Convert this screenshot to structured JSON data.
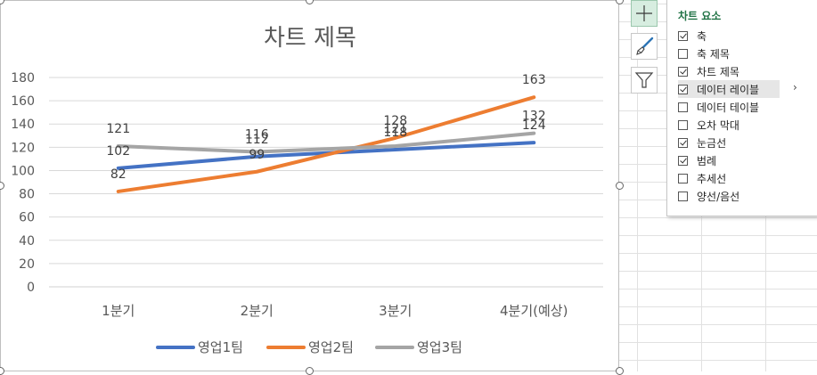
{
  "chart_data": {
    "type": "line",
    "title": "차트 제목",
    "categories": [
      "1분기",
      "2분기",
      "3분기",
      "4분기(예상)"
    ],
    "series": [
      {
        "name": "영업1팀",
        "values": [
          102,
          112,
          118,
          124
        ],
        "color": "#4472c4"
      },
      {
        "name": "영업2팀",
        "values": [
          82,
          99,
          128,
          163
        ],
        "color": "#ed7d31"
      },
      {
        "name": "영업3팀",
        "values": [
          121,
          116,
          121,
          132
        ],
        "color": "#a5a5a5"
      }
    ],
    "ylim": [
      0,
      180
    ],
    "yticks": [
      0,
      20,
      40,
      60,
      80,
      100,
      120,
      140,
      160,
      180
    ],
    "grid": true,
    "legend": "bottom",
    "data_labels": true
  },
  "panel": {
    "title": "차트 요소",
    "items": [
      {
        "label": "축",
        "checked": true
      },
      {
        "label": "축 제목",
        "checked": false
      },
      {
        "label": "차트 제목",
        "checked": true
      },
      {
        "label": "데이터 레이블",
        "checked": true
      },
      {
        "label": "데이터 테이블",
        "checked": false
      },
      {
        "label": "오차 막대",
        "checked": false
      },
      {
        "label": "눈금선",
        "checked": true
      },
      {
        "label": "범례",
        "checked": true
      },
      {
        "label": "추세선",
        "checked": false
      },
      {
        "label": "양선/음선",
        "checked": false
      }
    ],
    "submenu_arrow": "›"
  },
  "icons": {
    "elements": "plus-icon",
    "styles": "brush-icon",
    "filters": "funnel-icon"
  }
}
